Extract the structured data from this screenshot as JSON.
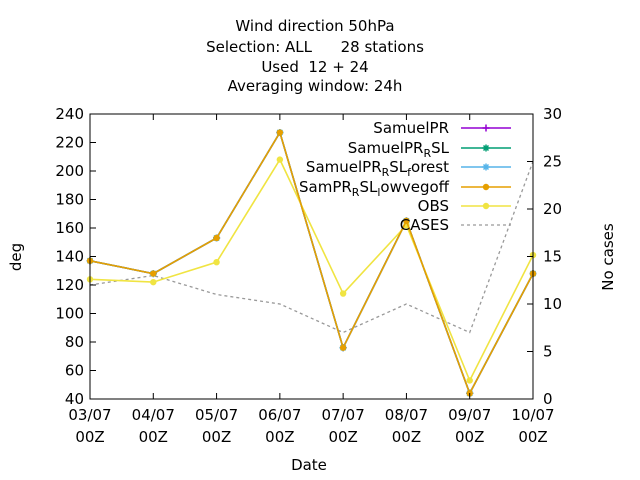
{
  "chart_data": {
    "type": "line",
    "title_lines": [
      "Wind direction 50hPa",
      "Selection: ALL      28 stations",
      "Used  12 + 24",
      "Averaging window: 24h"
    ],
    "xlabel": "Date",
    "ylabel": "deg",
    "y2label": "No cases",
    "categories": [
      [
        "03/07",
        "00Z"
      ],
      [
        "04/07",
        "00Z"
      ],
      [
        "05/07",
        "00Z"
      ],
      [
        "06/07",
        "00Z"
      ],
      [
        "07/07",
        "00Z"
      ],
      [
        "08/07",
        "00Z"
      ],
      [
        "09/07",
        "00Z"
      ],
      [
        "10/07",
        "00Z"
      ]
    ],
    "ylim": [
      40,
      240
    ],
    "yticks": [
      40,
      60,
      80,
      100,
      120,
      140,
      160,
      180,
      200,
      220,
      240
    ],
    "y2lim": [
      0,
      30
    ],
    "y2ticks": [
      0,
      5,
      10,
      15,
      20,
      25,
      30
    ],
    "legend_position": "top-right",
    "series": [
      {
        "name": "SamuelPR",
        "color": "#9400d3",
        "marker": "plus",
        "axis": "y1",
        "values": [
          137,
          128,
          153,
          227,
          76,
          165,
          44,
          128
        ]
      },
      {
        "name": "SamuelPR_RSL",
        "color": "#009e73",
        "marker": "star",
        "axis": "y1",
        "values": [
          137,
          128,
          153,
          227,
          76,
          165,
          44,
          128
        ]
      },
      {
        "name": "SamuelPR_RSL_forest",
        "color": "#56b4e9",
        "marker": "star",
        "axis": "y1",
        "values": [
          137,
          128,
          153,
          227,
          76,
          165,
          44,
          128
        ]
      },
      {
        "name": "SamPR_RSL_lowvegoff",
        "color": "#e69f00",
        "marker": "dot",
        "axis": "y1",
        "values": [
          137,
          128,
          153,
          227,
          76,
          165,
          44,
          128
        ]
      },
      {
        "name": "OBS",
        "color": "#f0e442",
        "marker": "dot",
        "axis": "y1",
        "values": [
          124,
          122,
          136,
          208,
          114,
          162,
          53,
          141
        ]
      },
      {
        "name": "CASES",
        "color": "#999999",
        "marker": "none",
        "dashed": true,
        "axis": "y2",
        "values": [
          12,
          13,
          11,
          10,
          7,
          10,
          7,
          25
        ]
      }
    ],
    "legend": [
      {
        "series": 0,
        "parts": [
          {
            "t": "SamuelPR"
          }
        ]
      },
      {
        "series": 1,
        "parts": [
          {
            "t": "SamuelPR"
          },
          {
            "t": "R",
            "sub": true
          },
          {
            "t": "SL"
          }
        ]
      },
      {
        "series": 2,
        "parts": [
          {
            "t": "SamuelPR"
          },
          {
            "t": "R",
            "sub": true
          },
          {
            "t": "SL"
          },
          {
            "t": "f",
            "sub": true
          },
          {
            "t": "orest"
          }
        ]
      },
      {
        "series": 3,
        "parts": [
          {
            "t": "SamPR"
          },
          {
            "t": "R",
            "sub": true
          },
          {
            "t": "SL"
          },
          {
            "t": "l",
            "sub": true
          },
          {
            "t": "owvegoff"
          }
        ]
      },
      {
        "series": 4,
        "parts": [
          {
            "t": "OBS"
          }
        ]
      },
      {
        "series": 5,
        "parts": [
          {
            "t": "CASES"
          }
        ]
      }
    ]
  }
}
